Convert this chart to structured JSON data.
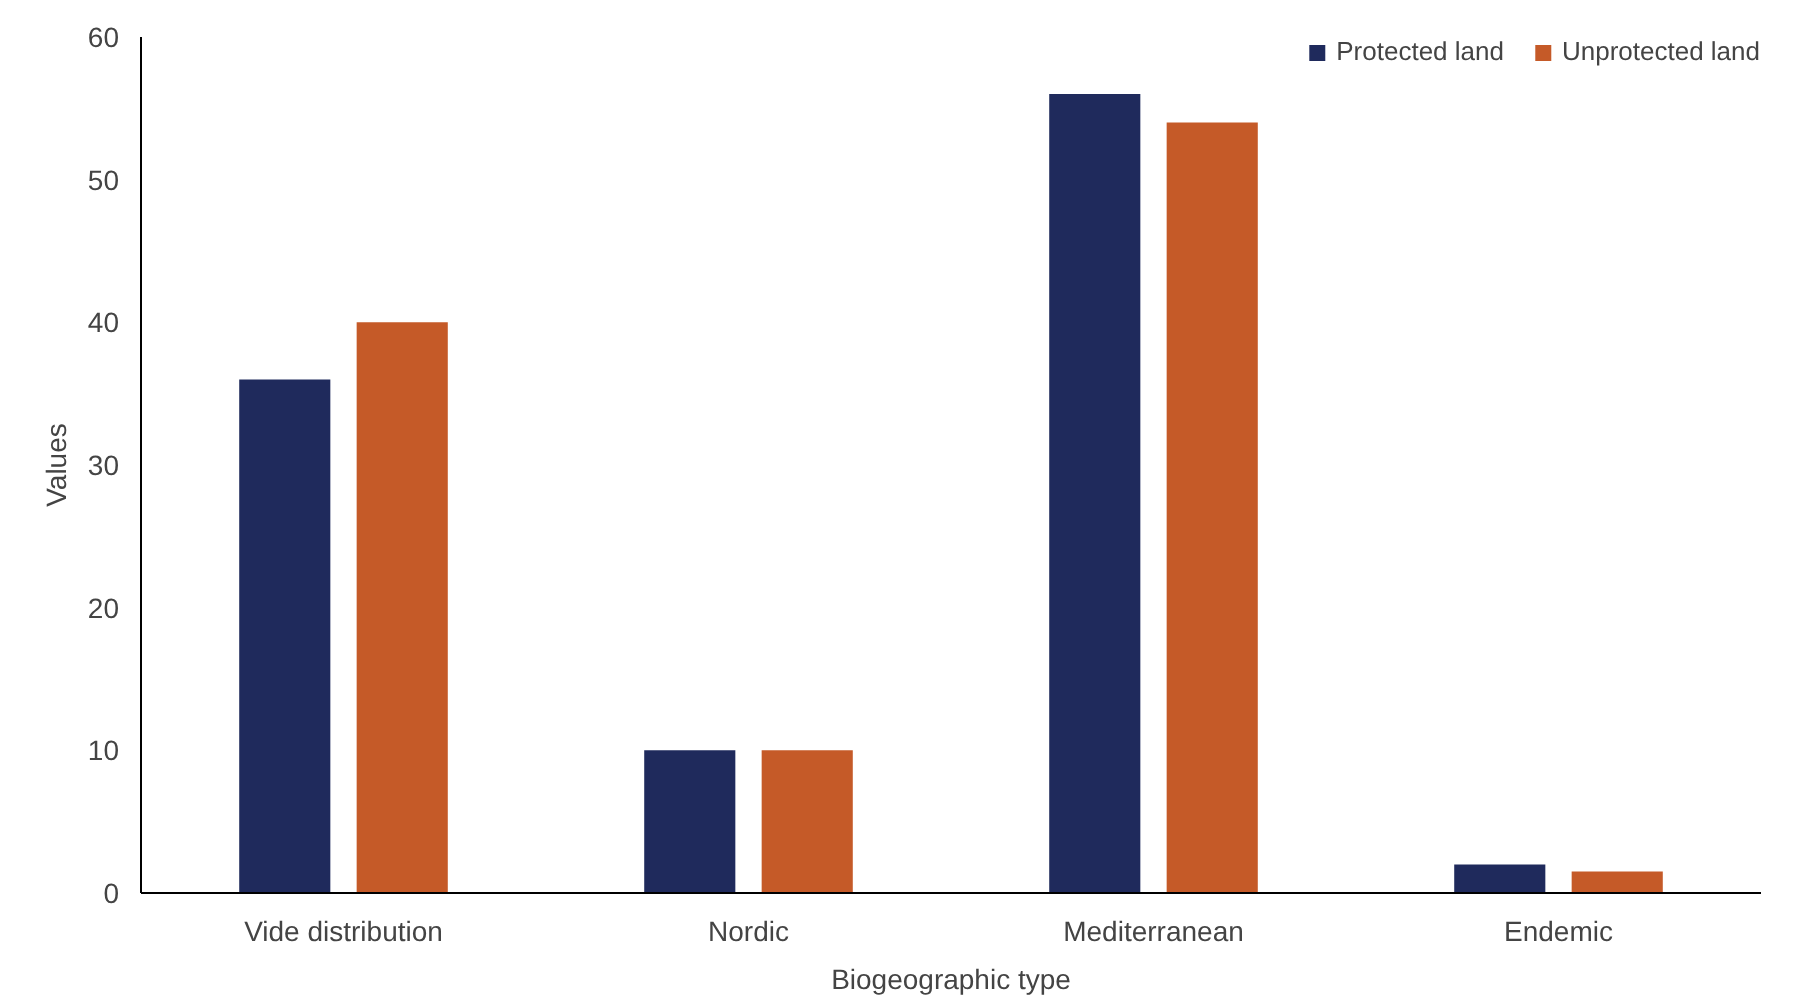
{
  "chart_data": {
    "type": "bar",
    "xlabel": "Biogeographic type",
    "ylabel": "Values",
    "categories": [
      "Vide distribution",
      "Nordic",
      "Mediterranean",
      "Endemic"
    ],
    "series": [
      {
        "name": "Protected land",
        "color": "#1f2a5c",
        "values": [
          36,
          10,
          56,
          2
        ]
      },
      {
        "name": "Unprotected land",
        "color": "#c55a28",
        "values": [
          40,
          10,
          54,
          1.5
        ]
      }
    ],
    "ylim": [
      0,
      60
    ],
    "yticks": [
      0,
      10,
      20,
      30,
      40,
      50,
      60
    ],
    "grid": false,
    "legend": "top right"
  }
}
